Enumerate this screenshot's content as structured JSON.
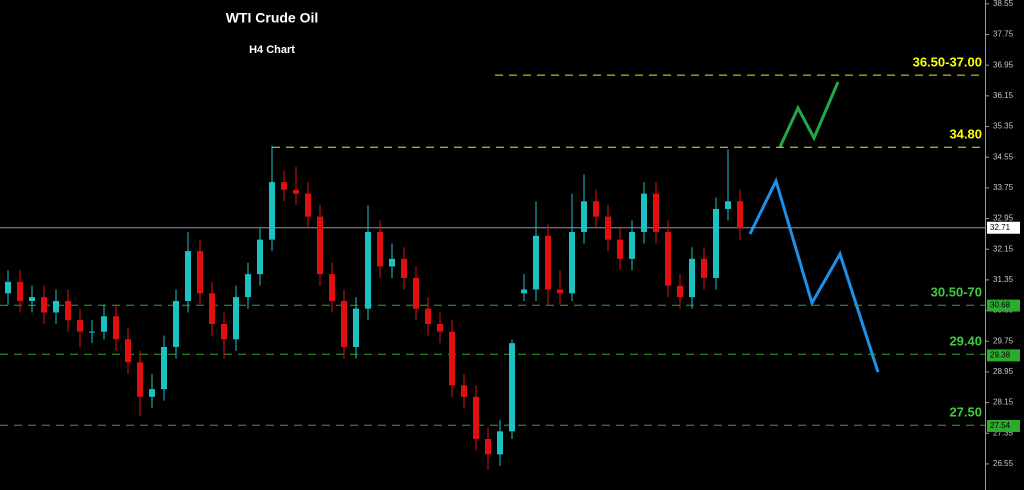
{
  "chart_data": {
    "type": "candlestick",
    "title": "WTI Crude Oil",
    "subtitle": "H4 Chart",
    "ylim": [
      25.87,
      38.65
    ],
    "yticks": [
      38.55,
      37.75,
      36.95,
      36.15,
      35.35,
      34.55,
      33.75,
      32.95,
      32.15,
      31.35,
      30.55,
      29.75,
      28.95,
      28.15,
      27.35,
      26.55
    ],
    "up_color": "#1fc2c2",
    "down_color": "#e01010",
    "open": [
      31.0,
      31.3,
      30.8,
      30.9,
      30.5,
      30.8,
      30.3,
      30.0,
      30.0,
      30.4,
      29.8,
      29.2,
      28.3,
      28.5,
      29.6,
      30.8,
      32.1,
      31.0,
      30.2,
      29.8,
      30.9,
      31.5,
      32.4,
      33.9,
      33.7,
      33.6,
      33.0,
      31.5,
      30.8,
      29.6,
      30.6,
      32.6,
      31.7,
      31.9,
      31.4,
      30.6,
      30.2,
      30.0,
      28.6,
      28.3,
      27.2,
      26.8,
      27.4,
      31.0,
      31.1,
      32.5,
      31.1,
      31.0,
      32.6,
      33.4,
      33.0,
      32.4,
      31.9,
      32.6,
      33.6,
      32.6,
      31.2,
      30.9,
      31.9,
      31.4,
      33.2,
      33.4
    ],
    "high": [
      31.6,
      31.6,
      31.2,
      31.2,
      31.1,
      31.1,
      30.6,
      30.3,
      30.7,
      30.7,
      30.1,
      29.5,
      28.9,
      29.9,
      31.1,
      32.6,
      32.4,
      31.3,
      30.5,
      31.2,
      31.8,
      32.7,
      34.85,
      34.2,
      34.3,
      33.9,
      33.3,
      31.8,
      31.1,
      30.9,
      33.3,
      32.9,
      32.3,
      32.2,
      31.7,
      30.9,
      30.5,
      30.3,
      28.9,
      28.6,
      27.5,
      27.7,
      29.8,
      31.5,
      33.4,
      32.8,
      31.6,
      33.6,
      34.1,
      33.7,
      33.3,
      32.7,
      32.9,
      33.9,
      33.9,
      32.9,
      31.5,
      32.2,
      32.2,
      33.5,
      34.75,
      33.7
    ],
    "low": [
      30.7,
      30.5,
      30.5,
      30.2,
      30.2,
      30.0,
      29.6,
      29.7,
      29.8,
      29.5,
      28.9,
      27.8,
      28.0,
      28.2,
      29.3,
      30.5,
      30.7,
      29.9,
      29.3,
      29.5,
      30.6,
      31.2,
      32.1,
      33.4,
      33.3,
      32.7,
      31.2,
      30.5,
      29.3,
      29.3,
      30.3,
      31.4,
      31.4,
      31.1,
      30.3,
      29.9,
      29.7,
      28.3,
      28.0,
      26.9,
      26.4,
      26.5,
      27.2,
      30.8,
      30.8,
      30.7,
      30.7,
      30.8,
      32.3,
      32.7,
      32.1,
      31.6,
      31.6,
      32.3,
      32.3,
      30.9,
      30.6,
      30.6,
      31.1,
      31.1,
      32.9,
      32.4
    ],
    "close": [
      31.3,
      30.8,
      30.9,
      30.5,
      30.8,
      30.3,
      30.0,
      30.0,
      30.4,
      29.8,
      29.2,
      28.3,
      28.5,
      29.6,
      30.8,
      32.1,
      31.0,
      30.2,
      29.8,
      30.9,
      31.5,
      32.4,
      33.9,
      33.7,
      33.6,
      33.0,
      31.5,
      30.8,
      29.6,
      30.6,
      32.6,
      31.7,
      31.9,
      31.4,
      30.6,
      30.2,
      30.0,
      28.6,
      28.3,
      27.2,
      26.8,
      27.4,
      29.7,
      31.1,
      32.5,
      31.1,
      31.0,
      32.6,
      33.4,
      33.0,
      32.4,
      31.9,
      32.6,
      33.6,
      32.6,
      31.2,
      30.9,
      31.9,
      31.4,
      33.2,
      33.4,
      32.7
    ],
    "levels": [
      {
        "value": 36.69,
        "label": "36.50-37.00",
        "color": "#e8e820"
      },
      {
        "value": 34.81,
        "label": "34.80",
        "color": "#e8e820"
      },
      {
        "value": 30.69,
        "label": "30.50-70",
        "color": "#2eaa2e"
      },
      {
        "value": 29.41,
        "label": "29.40",
        "color": "#2eaa2e"
      },
      {
        "value": 27.56,
        "label": "27.50",
        "color": "#2eaa2e"
      }
    ],
    "current_price": 32.71,
    "price_tags": [
      30.68,
      29.38,
      27.54
    ],
    "tag_color": "#2eaa2e"
  }
}
